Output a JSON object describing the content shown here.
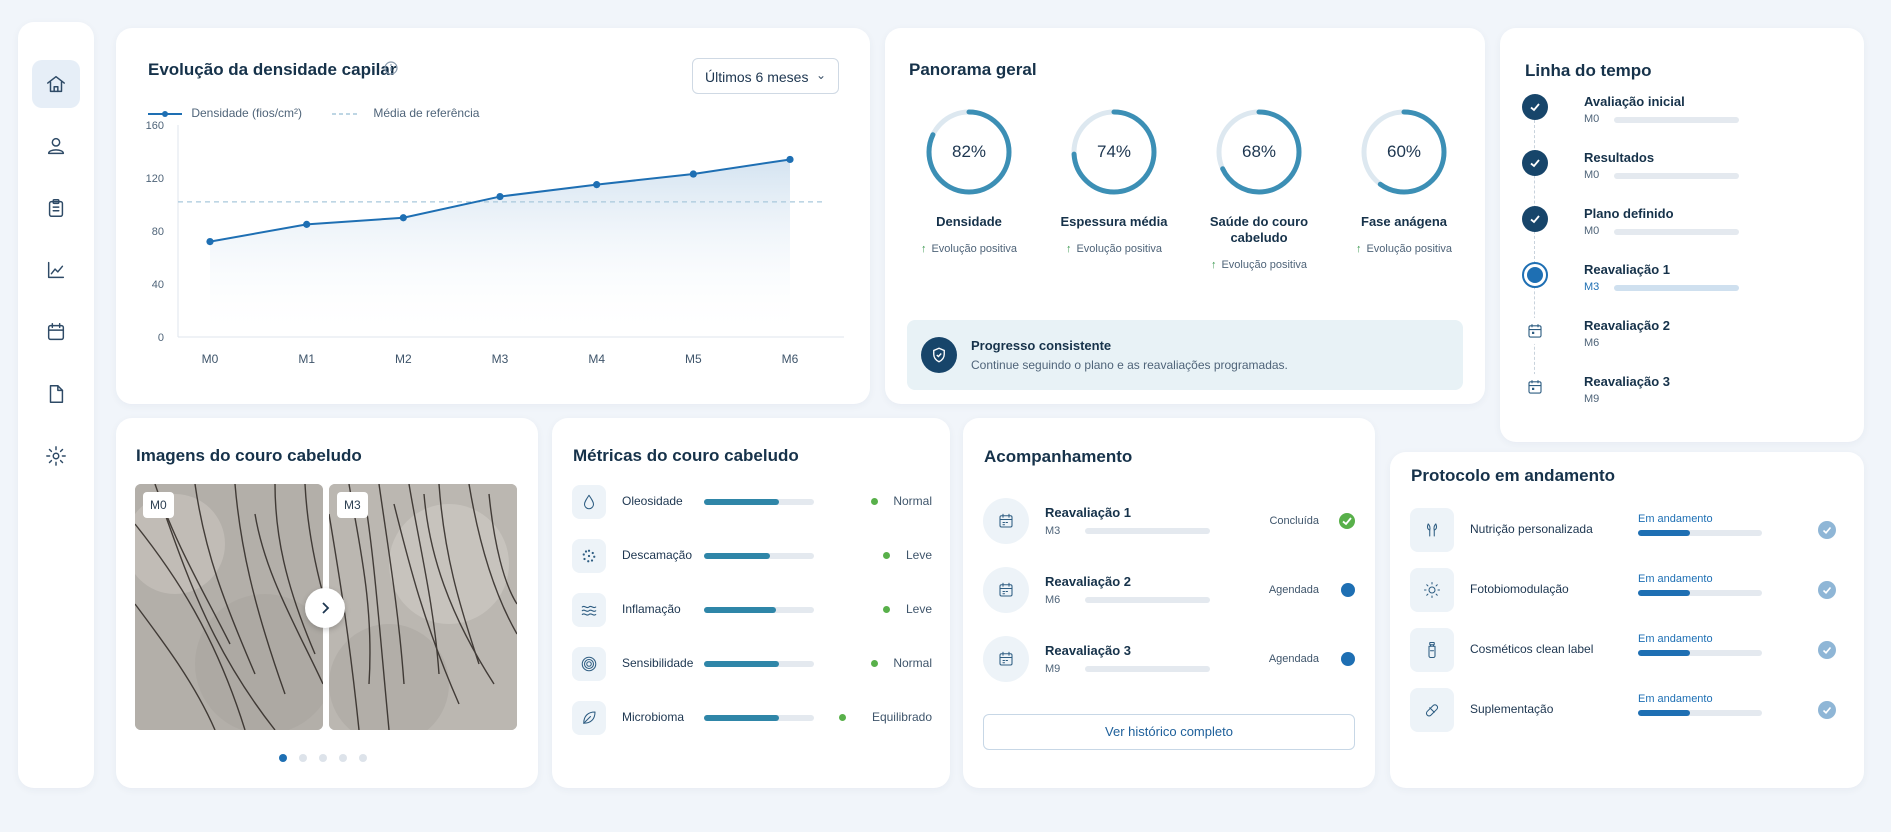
{
  "sidebar": {
    "items": [
      "home-icon",
      "user-icon",
      "clipboard-icon",
      "chart-icon",
      "calendar-icon",
      "document-icon",
      "gear-icon"
    ]
  },
  "density": {
    "title": "Evolução da densidade capilar",
    "period": "Últimos 6 meses",
    "legend_series": "Densidade (fios/cm²)",
    "legend_reference": "Média de referência"
  },
  "chart_data": {
    "type": "line",
    "title": "Evolução da densidade capilar",
    "categories": [
      "M0",
      "M1",
      "M2",
      "M3",
      "M4",
      "M5",
      "M6"
    ],
    "series": [
      {
        "name": "Densidade (fios/cm²)",
        "values": [
          72,
          85,
          90,
          106,
          115,
          123,
          134
        ]
      },
      {
        "name": "Média de referência",
        "values": [
          102,
          102,
          102,
          102,
          102,
          102,
          102
        ]
      }
    ],
    "yticks": [
      0,
      40,
      80,
      120,
      160
    ],
    "ylim": [
      0,
      160
    ],
    "grid": false,
    "legend_position": "top-left",
    "colors": {
      "series": "#1e6fb3",
      "reference": "#a9c8dc"
    }
  },
  "panorama": {
    "title": "Panorama geral",
    "gauges": [
      {
        "value": 82,
        "text": "82%",
        "label": "Densidade",
        "evolution": "Evolução positiva"
      },
      {
        "value": 74,
        "text": "74%",
        "label": "Espessura média",
        "evolution": "Evolução positiva"
      },
      {
        "value": 68,
        "text": "68%",
        "label": "Saúde do couro cabeludo",
        "evolution": "Evolução positiva"
      },
      {
        "value": 60,
        "text": "60%",
        "label": "Fase anágena",
        "evolution": "Evolução positiva"
      }
    ],
    "banner": {
      "title": "Progresso consistente",
      "text": "Continue seguindo o plano e as reavaliações programadas."
    }
  },
  "timeline": {
    "title": "Linha do tempo",
    "items": [
      {
        "label": "Avaliação inicial",
        "sub": "M0",
        "state": "done"
      },
      {
        "label": "Resultados",
        "sub": "M0",
        "state": "done"
      },
      {
        "label": "Plano definido",
        "sub": "M0",
        "state": "done"
      },
      {
        "label": "Reavaliação 1",
        "sub": "M3",
        "state": "current"
      },
      {
        "label": "Reavaliação 2",
        "sub": "M6",
        "state": "scheduled"
      },
      {
        "label": "Reavaliação 3",
        "sub": "M9",
        "state": "scheduled"
      }
    ]
  },
  "images": {
    "title": "Imagens do couro cabeludo",
    "left_tag": "M0",
    "right_tag": "M3",
    "active_dot": 1,
    "dot_count": 5
  },
  "metrics": {
    "title": "Métricas do couro cabeludo",
    "rows": [
      {
        "label": "Oleosidade",
        "level": 0.68,
        "status": "Normal",
        "icon": "droplet-icon"
      },
      {
        "label": "Descamação",
        "level": 0.6,
        "status": "Leve",
        "icon": "flakes-icon"
      },
      {
        "label": "Inflamação",
        "level": 0.65,
        "status": "Leve",
        "icon": "waves-icon"
      },
      {
        "label": "Sensibilidade",
        "level": 0.68,
        "status": "Normal",
        "icon": "target-icon"
      },
      {
        "label": "Microbioma",
        "level": 0.68,
        "status": "Equilibrado",
        "icon": "leaf-icon"
      }
    ]
  },
  "followup": {
    "title": "Acompanhamento",
    "rows": [
      {
        "label": "Reavaliação 1",
        "sub": "M3",
        "status": "Concluída",
        "state": "done"
      },
      {
        "label": "Reavaliação 2",
        "sub": "M6",
        "status": "Agendada",
        "state": "scheduled"
      },
      {
        "label": "Reavaliação 3",
        "sub": "M9",
        "status": "Agendada",
        "state": "scheduled"
      }
    ],
    "button": "Ver histórico completo"
  },
  "protocol": {
    "title": "Protocolo em andamento",
    "rows": [
      {
        "label": "Nutrição personalizada",
        "status": "Em andamento",
        "progress": 0.42,
        "icon": "nutrition-icon"
      },
      {
        "label": "Fotobiomodulação",
        "status": "Em andamento",
        "progress": 0.42,
        "icon": "sun-icon"
      },
      {
        "label": "Cosméticos clean label",
        "status": "Em andamento",
        "progress": 0.42,
        "icon": "bottle-icon"
      },
      {
        "label": "Suplementação",
        "status": "Em andamento",
        "progress": 0.42,
        "icon": "pill-icon"
      }
    ]
  },
  "colors": {
    "accent": "#1e6fb3",
    "gauge": "#3c8fb5",
    "navy": "#16324a",
    "success": "#58b04a"
  }
}
